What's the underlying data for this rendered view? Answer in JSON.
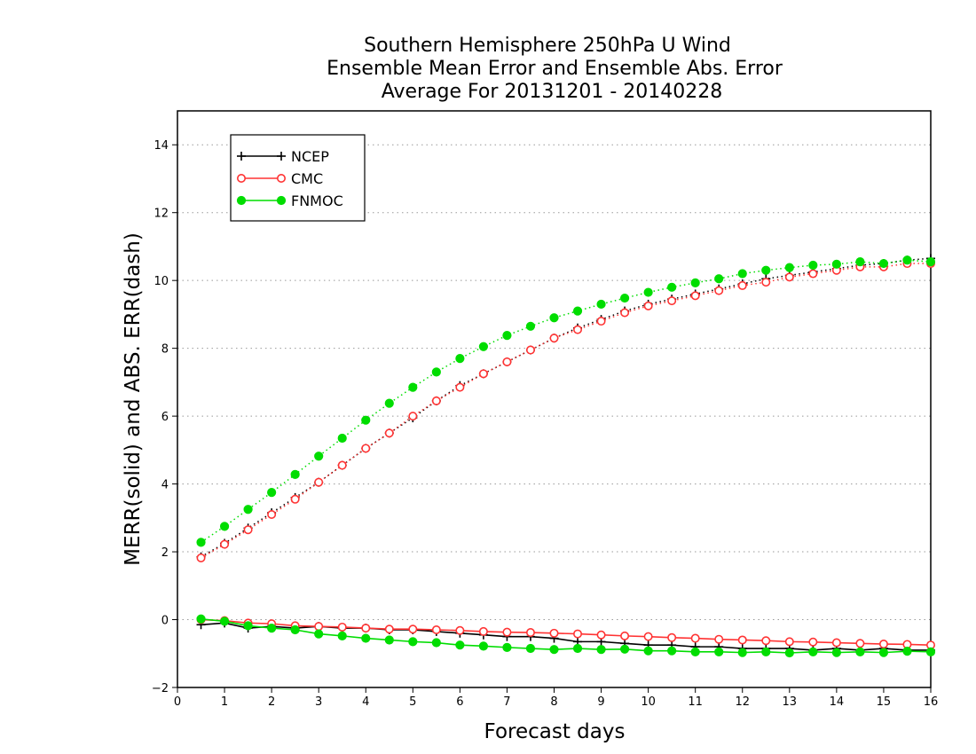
{
  "chart_data": {
    "type": "line",
    "title": [
      "Southern Hemisphere 250hPa U Wind",
      "Ensemble Mean Error and Ensemble Abs. Error",
      "Average For 20131201 - 20140228"
    ],
    "xlabel": "Forecast days",
    "ylabel": "MERR(solid) and ABS. ERR(dash)",
    "xlim": [
      0,
      16
    ],
    "ylim": [
      -2,
      15
    ],
    "xticks": [
      0,
      1,
      2,
      3,
      4,
      5,
      6,
      7,
      8,
      9,
      10,
      11,
      12,
      13,
      14,
      15,
      16
    ],
    "yticks": [
      -2,
      0,
      2,
      4,
      6,
      8,
      10,
      12,
      14
    ],
    "ytick_labels": [
      "−2",
      "0",
      "2",
      "4",
      "6",
      "8",
      "10",
      "12",
      "14"
    ],
    "grid": "horizontal dotted",
    "legend_position": "top-left",
    "x": [
      0.5,
      1,
      1.5,
      2,
      2.5,
      3,
      3.5,
      4,
      4.5,
      5,
      5.5,
      6,
      6.5,
      7,
      7.5,
      8,
      8.5,
      9,
      9.5,
      10,
      10.5,
      11,
      11.5,
      12,
      12.5,
      13,
      13.5,
      14,
      14.5,
      15,
      15.5,
      16
    ],
    "series": [
      {
        "name": "NCEP",
        "color": "#000000",
        "marker": "plus",
        "abs_error": [
          1.85,
          2.25,
          2.7,
          3.15,
          3.6,
          4.05,
          4.55,
          5.05,
          5.5,
          5.95,
          6.45,
          6.9,
          7.25,
          7.6,
          7.95,
          8.3,
          8.6,
          8.85,
          9.1,
          9.3,
          9.45,
          9.6,
          9.75,
          9.9,
          10.05,
          10.15,
          10.25,
          10.35,
          10.45,
          10.5,
          10.6,
          10.65
        ],
        "mean_error": [
          -0.15,
          -0.1,
          -0.25,
          -0.2,
          -0.25,
          -0.2,
          -0.25,
          -0.25,
          -0.3,
          -0.3,
          -0.35,
          -0.4,
          -0.45,
          -0.5,
          -0.5,
          -0.55,
          -0.65,
          -0.65,
          -0.7,
          -0.75,
          -0.75,
          -0.8,
          -0.8,
          -0.85,
          -0.85,
          -0.85,
          -0.9,
          -0.85,
          -0.9,
          -0.85,
          -0.9,
          -0.9
        ]
      },
      {
        "name": "CMC",
        "color": "#ff3333",
        "marker": "open-circle",
        "abs_error": [
          1.82,
          2.22,
          2.65,
          3.1,
          3.55,
          4.05,
          4.55,
          5.05,
          5.5,
          6.0,
          6.45,
          6.85,
          7.25,
          7.6,
          7.95,
          8.3,
          8.55,
          8.8,
          9.05,
          9.25,
          9.4,
          9.55,
          9.7,
          9.85,
          9.95,
          10.1,
          10.2,
          10.3,
          10.4,
          10.4,
          10.5,
          10.5
        ],
        "mean_error": [
          0.0,
          -0.03,
          -0.1,
          -0.12,
          -0.18,
          -0.2,
          -0.22,
          -0.25,
          -0.28,
          -0.28,
          -0.3,
          -0.32,
          -0.35,
          -0.37,
          -0.38,
          -0.4,
          -0.42,
          -0.45,
          -0.48,
          -0.5,
          -0.53,
          -0.55,
          -0.58,
          -0.6,
          -0.62,
          -0.65,
          -0.66,
          -0.68,
          -0.7,
          -0.72,
          -0.73,
          -0.75
        ]
      },
      {
        "name": "FNMOC",
        "color": "#00dd00",
        "marker": "filled-circle",
        "abs_error": [
          2.28,
          2.75,
          3.25,
          3.75,
          4.28,
          4.82,
          5.35,
          5.88,
          6.38,
          6.85,
          7.3,
          7.7,
          8.05,
          8.38,
          8.65,
          8.9,
          9.1,
          9.3,
          9.48,
          9.65,
          9.8,
          9.93,
          10.05,
          10.2,
          10.3,
          10.38,
          10.45,
          10.48,
          10.55,
          10.5,
          10.6,
          10.55
        ],
        "mean_error": [
          0.02,
          -0.05,
          -0.18,
          -0.25,
          -0.3,
          -0.42,
          -0.48,
          -0.55,
          -0.6,
          -0.65,
          -0.68,
          -0.75,
          -0.78,
          -0.82,
          -0.85,
          -0.88,
          -0.85,
          -0.88,
          -0.87,
          -0.92,
          -0.92,
          -0.95,
          -0.95,
          -0.97,
          -0.95,
          -0.98,
          -0.95,
          -0.97,
          -0.95,
          -0.97,
          -0.93,
          -0.95
        ]
      }
    ]
  }
}
